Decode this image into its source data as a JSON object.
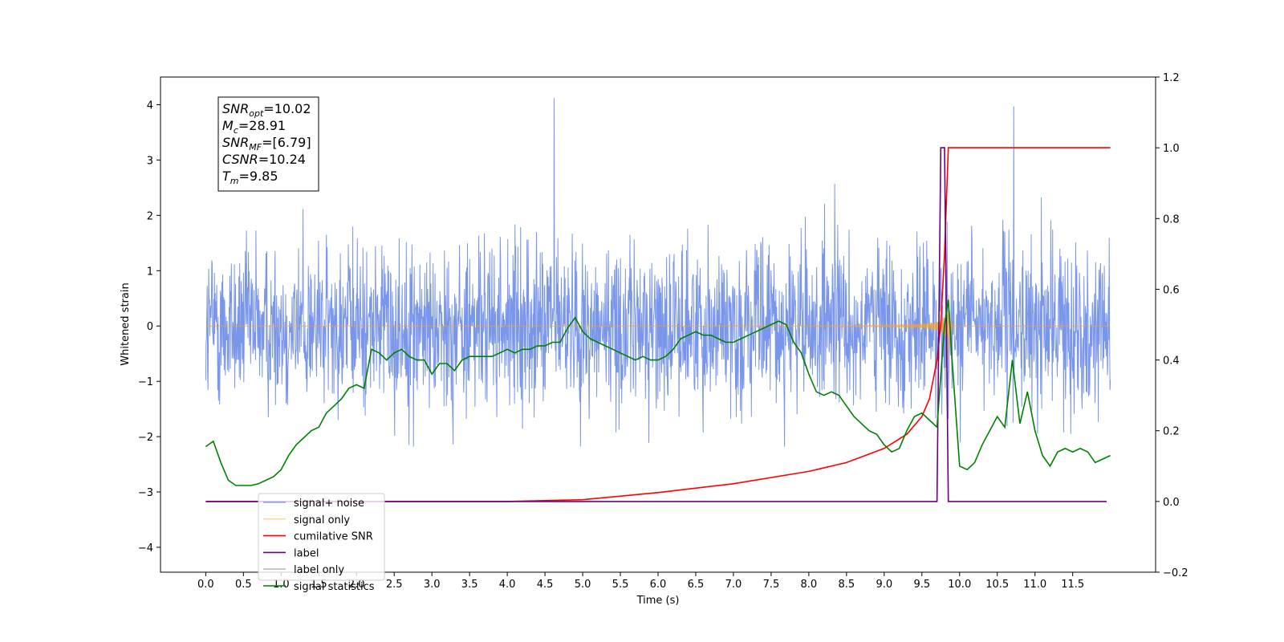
{
  "chart_data": {
    "type": "line",
    "title": "",
    "xlabel": "Time (s)",
    "ylabel": "Whitened strain",
    "y2label": "",
    "xlim": [
      -0.6,
      12.6
    ],
    "ylim": [
      -4.45,
      4.5
    ],
    "y2lim": [
      -0.2,
      1.2
    ],
    "x_ticks": [
      "0.0",
      "0.5",
      "1.0",
      "1.5",
      "2.0",
      "2.5",
      "3.0",
      "3.5",
      "4.0",
      "4.5",
      "5.0",
      "5.5",
      "6.0",
      "6.5",
      "7.0",
      "7.5",
      "8.0",
      "8.5",
      "9.0",
      "9.5",
      "10.0",
      "10.5",
      "11.0",
      "11.5"
    ],
    "y_ticks": [
      "4",
      "3",
      "2",
      "1",
      "0",
      "−1",
      "−2",
      "−3",
      "−4"
    ],
    "y2_ticks": [
      "1.2",
      "1.0",
      "0.8",
      "0.6",
      "0.4",
      "0.2",
      "0.0",
      "−0.2"
    ],
    "legend_position": "lower-left",
    "grid": false,
    "annotation": [
      {
        "sym": "SNR",
        "sub": "opt",
        "rest": "=10.02"
      },
      {
        "sym": "M",
        "sub": "c",
        "rest": "=28.91"
      },
      {
        "sym": "SNR",
        "sub": "MF",
        "rest": "=[6.79]"
      },
      {
        "sym": "CSNR",
        "sub": "",
        "rest": "=10.24"
      },
      {
        "sym": "T",
        "sub": "m",
        "rest": "=9.85"
      }
    ],
    "series": [
      {
        "name": "signal+ noise",
        "color": "#4169e1",
        "axis": "left",
        "kind": "noise",
        "x_range": [
          0,
          12
        ],
        "amplitude_typical": 2.2,
        "peak": 4.12
      },
      {
        "name": "signal only",
        "color": "#f5a623",
        "axis": "left",
        "kind": "chirp",
        "merger_time": 9.85,
        "peak_amplitude": 1.0
      },
      {
        "name": "cumilative SNR",
        "color": "#ff0000",
        "axis": "right",
        "x": [
          0.0,
          4.0,
          5.0,
          6.0,
          7.0,
          8.0,
          8.5,
          9.0,
          9.3,
          9.5,
          9.6,
          9.7,
          9.75,
          9.8,
          9.85,
          9.9,
          12.0
        ],
        "values": [
          0.0,
          0.0,
          0.005,
          0.025,
          0.05,
          0.085,
          0.11,
          0.15,
          0.19,
          0.24,
          0.29,
          0.4,
          0.5,
          0.7,
          1.0,
          1.0,
          1.0
        ]
      },
      {
        "name": "label",
        "color": "#6a0080",
        "axis": "right",
        "x": [
          0.0,
          9.7,
          9.75,
          9.8,
          9.85,
          11.95
        ],
        "values": [
          0.0,
          0.0,
          1.0,
          1.0,
          0.0,
          0.0
        ]
      },
      {
        "name": "label only",
        "color": "#bbbbbb",
        "axis": "right",
        "legend_only": true,
        "x": [],
        "values": []
      },
      {
        "name": "signal statistics",
        "color": "#008000",
        "axis": "right",
        "x": [
          0.0,
          0.1,
          0.2,
          0.3,
          0.4,
          0.5,
          0.6,
          0.7,
          0.8,
          0.9,
          1.0,
          1.1,
          1.2,
          1.3,
          1.4,
          1.5,
          1.6,
          1.7,
          1.8,
          1.9,
          2.0,
          2.1,
          2.2,
          2.3,
          2.4,
          2.5,
          2.6,
          2.7,
          2.8,
          2.9,
          3.0,
          3.1,
          3.2,
          3.3,
          3.4,
          3.5,
          3.6,
          3.7,
          3.8,
          3.9,
          4.0,
          4.1,
          4.2,
          4.3,
          4.4,
          4.5,
          4.6,
          4.7,
          4.8,
          4.9,
          5.0,
          5.1,
          5.2,
          5.3,
          5.4,
          5.5,
          5.6,
          5.7,
          5.8,
          5.9,
          6.0,
          6.1,
          6.2,
          6.3,
          6.4,
          6.5,
          6.6,
          6.7,
          6.8,
          6.9,
          7.0,
          7.1,
          7.2,
          7.3,
          7.4,
          7.5,
          7.6,
          7.7,
          7.8,
          7.9,
          8.0,
          8.1,
          8.2,
          8.3,
          8.4,
          8.5,
          8.6,
          8.7,
          8.8,
          8.9,
          9.0,
          9.1,
          9.2,
          9.3,
          9.4,
          9.5,
          9.6,
          9.7,
          9.8,
          9.85,
          9.9,
          10.0,
          10.1,
          10.2,
          10.3,
          10.4,
          10.5,
          10.6,
          10.7,
          10.8,
          10.9,
          11.0,
          11.1,
          11.2,
          11.3,
          11.4,
          11.5,
          11.6,
          11.7,
          11.8,
          11.9,
          12.0
        ],
        "values": [
          0.155,
          0.17,
          0.11,
          0.06,
          0.045,
          0.045,
          0.045,
          0.05,
          0.06,
          0.07,
          0.09,
          0.13,
          0.16,
          0.18,
          0.2,
          0.21,
          0.25,
          0.27,
          0.29,
          0.32,
          0.33,
          0.32,
          0.43,
          0.42,
          0.4,
          0.42,
          0.43,
          0.41,
          0.4,
          0.4,
          0.36,
          0.39,
          0.39,
          0.37,
          0.4,
          0.41,
          0.41,
          0.41,
          0.41,
          0.42,
          0.43,
          0.42,
          0.43,
          0.43,
          0.44,
          0.44,
          0.45,
          0.45,
          0.49,
          0.52,
          0.48,
          0.46,
          0.45,
          0.44,
          0.43,
          0.42,
          0.41,
          0.4,
          0.41,
          0.4,
          0.4,
          0.41,
          0.43,
          0.46,
          0.47,
          0.48,
          0.47,
          0.47,
          0.46,
          0.45,
          0.45,
          0.46,
          0.47,
          0.48,
          0.49,
          0.5,
          0.51,
          0.5,
          0.45,
          0.42,
          0.36,
          0.31,
          0.3,
          0.31,
          0.3,
          0.27,
          0.24,
          0.22,
          0.2,
          0.19,
          0.16,
          0.14,
          0.15,
          0.2,
          0.24,
          0.25,
          0.23,
          0.21,
          0.5,
          0.57,
          0.4,
          0.1,
          0.09,
          0.11,
          0.16,
          0.2,
          0.24,
          0.21,
          0.4,
          0.22,
          0.31,
          0.2,
          0.13,
          0.1,
          0.14,
          0.15,
          0.14,
          0.15,
          0.14,
          0.11,
          0.12,
          0.13
        ]
      }
    ]
  }
}
